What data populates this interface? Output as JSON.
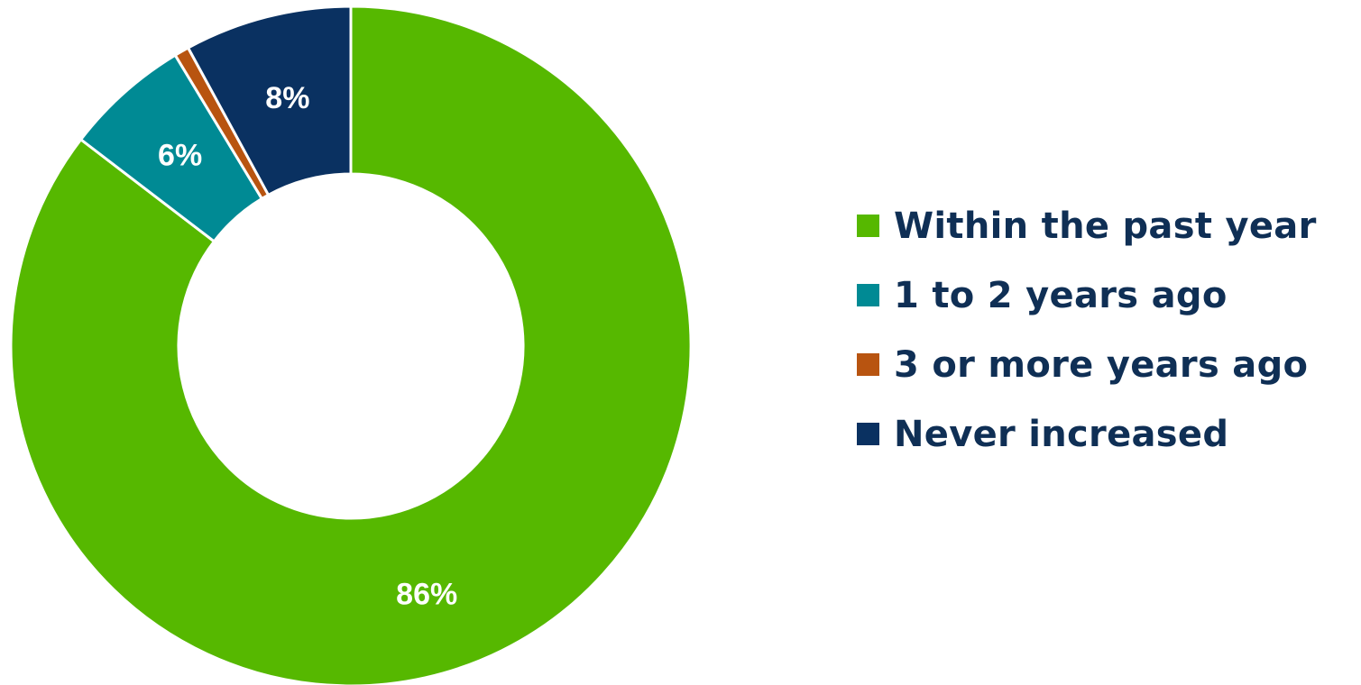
{
  "chart_data": {
    "type": "pie",
    "variant": "donut",
    "categories": [
      "Within the past year",
      "1 to 2 years ago",
      "3 or more years ago",
      "Never increased"
    ],
    "values": [
      86,
      6,
      0.7,
      8
    ],
    "data_labels": [
      "86%",
      "6%",
      "",
      "8%"
    ],
    "colors": [
      "#56b800",
      "#008a94",
      "#b85410",
      "#0a3161"
    ],
    "legend_position": "right",
    "title": ""
  },
  "legend_color_text": "#0f2f55"
}
